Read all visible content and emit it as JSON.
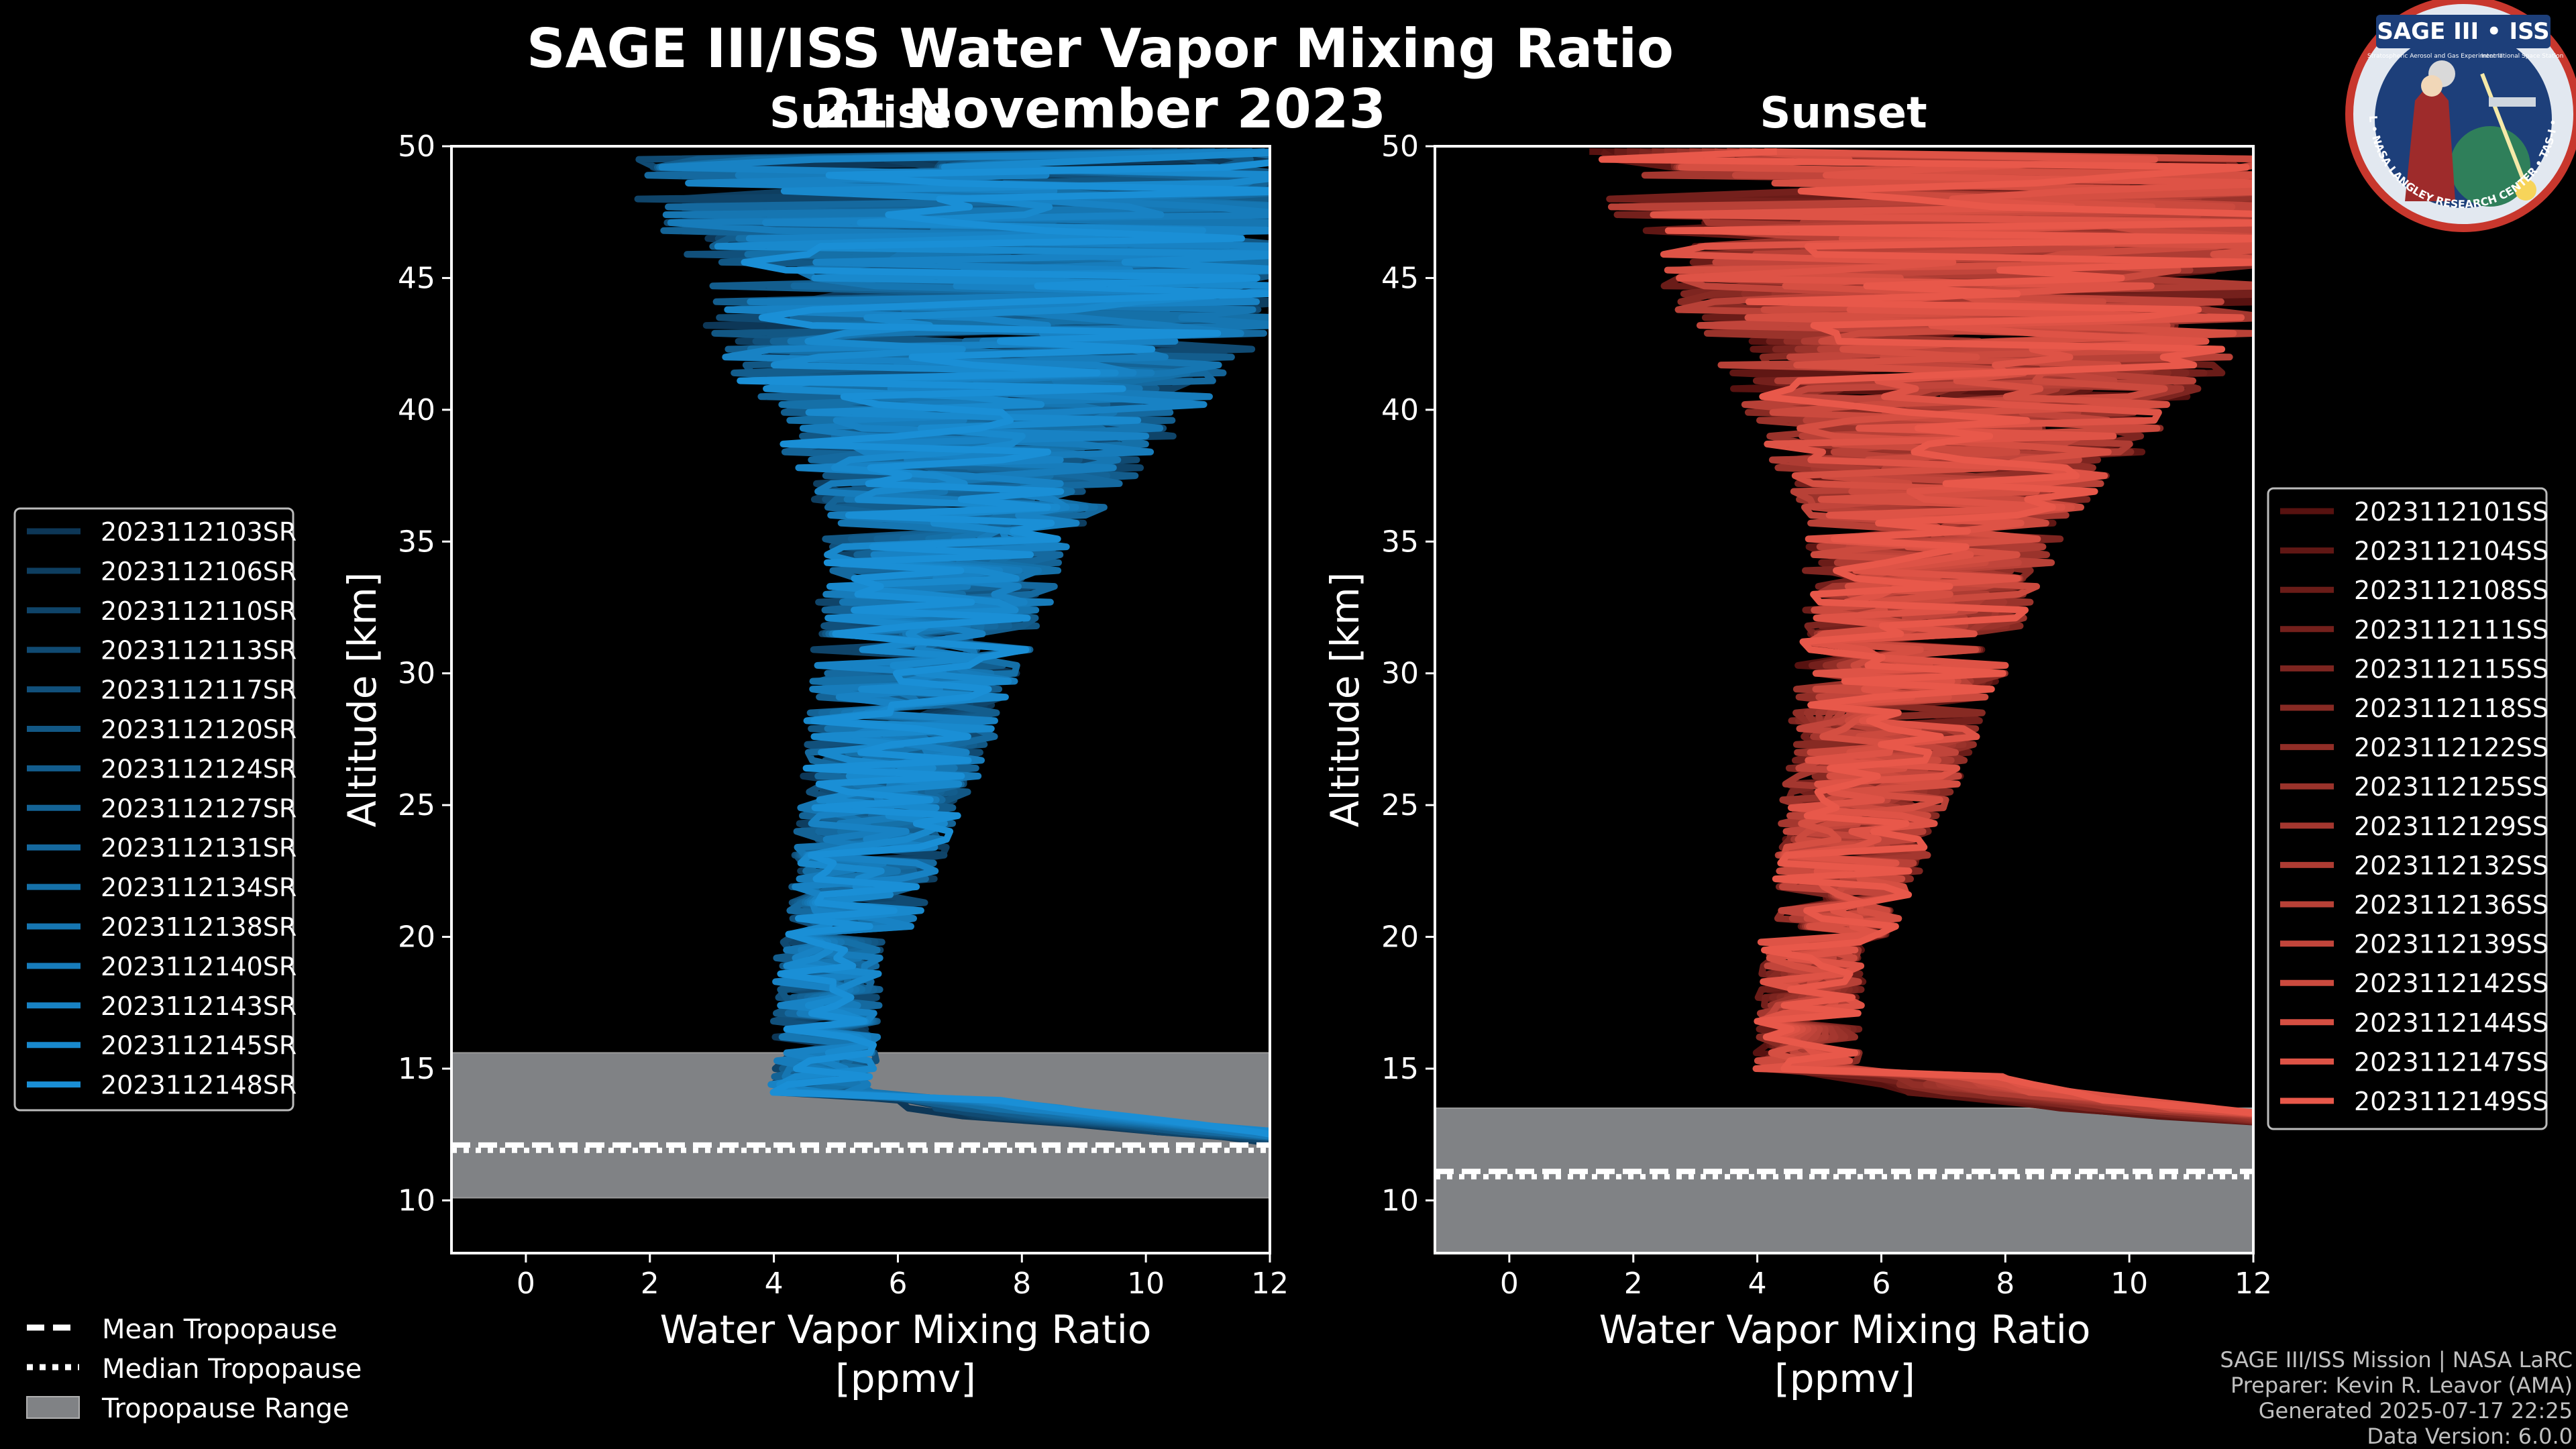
{
  "title": "SAGE III/ISS Water Vapor Mixing Ratio",
  "date": "21 November 2023",
  "logo": {
    "top_text": "SAGE III • ISS",
    "sub_text": "Stratospheric Aerosol and Gas Experiment III",
    "sub_text2": "International Space Station",
    "ring_text": "BALL • NASA LANGLEY RESEARCH CENTER • TAS-I • ESA"
  },
  "footer": {
    "line1": "SAGE III/ISS Mission | NASA LaRC",
    "line2": "Preparer: Kevin R. Leavor (AMA)",
    "line3": "Generated 2025-07-17 22:25",
    "line4": "Data Version: 6.0.0"
  },
  "tropopause_legend": {
    "mean": "Mean Tropopause",
    "median": "Median Tropopause",
    "range": "Tropopause Range"
  },
  "colors": {
    "sunrise": "#1a8fd6",
    "sunset": "#e8584a",
    "range": "#808285",
    "background": "#000000"
  },
  "chart_data": [
    {
      "type": "line",
      "subtitle": "Sunrise",
      "xlabel": "Water Vapor Mixing Ratio\n[ppmv]",
      "ylabel": "Altitude [km]",
      "xlim": [
        -1.2,
        12
      ],
      "ylim": [
        8,
        50
      ],
      "xticks": [
        0,
        2,
        4,
        6,
        8,
        10,
        12
      ],
      "yticks": [
        10,
        15,
        20,
        25,
        30,
        35,
        40,
        45,
        50
      ],
      "tropopause": {
        "mean": 12.1,
        "median": 11.9,
        "range": [
          10.1,
          15.6
        ]
      },
      "series": [
        {
          "name": "2023112103SR"
        },
        {
          "name": "2023112106SR"
        },
        {
          "name": "2023112110SR"
        },
        {
          "name": "2023112113SR"
        },
        {
          "name": "2023112117SR"
        },
        {
          "name": "2023112120SR"
        },
        {
          "name": "2023112124SR"
        },
        {
          "name": "2023112127SR"
        },
        {
          "name": "2023112131SR"
        },
        {
          "name": "2023112134SR"
        },
        {
          "name": "2023112138SR"
        },
        {
          "name": "2023112140SR"
        },
        {
          "name": "2023112143SR"
        },
        {
          "name": "2023112145SR"
        },
        {
          "name": "2023112148SR"
        }
      ]
    },
    {
      "type": "line",
      "subtitle": "Sunset",
      "xlabel": "Water Vapor Mixing Ratio\n[ppmv]",
      "ylabel": "Altitude [km]",
      "xlim": [
        -1.2,
        12
      ],
      "ylim": [
        8,
        50
      ],
      "xticks": [
        0,
        2,
        4,
        6,
        8,
        10,
        12
      ],
      "yticks": [
        10,
        15,
        20,
        25,
        30,
        35,
        40,
        45,
        50
      ],
      "tropopause": {
        "mean": 11.1,
        "median": 10.9,
        "range": [
          8,
          13.5
        ]
      },
      "series": [
        {
          "name": "2023112101SS"
        },
        {
          "name": "2023112104SS"
        },
        {
          "name": "2023112108SS"
        },
        {
          "name": "2023112111SS"
        },
        {
          "name": "2023112115SS"
        },
        {
          "name": "2023112118SS"
        },
        {
          "name": "2023112122SS"
        },
        {
          "name": "2023112125SS"
        },
        {
          "name": "2023112129SS"
        },
        {
          "name": "2023112132SS"
        },
        {
          "name": "2023112136SS"
        },
        {
          "name": "2023112139SS"
        },
        {
          "name": "2023112142SS"
        },
        {
          "name": "2023112144SS"
        },
        {
          "name": "2023112147SS"
        },
        {
          "name": "2023112149SS"
        }
      ]
    }
  ]
}
